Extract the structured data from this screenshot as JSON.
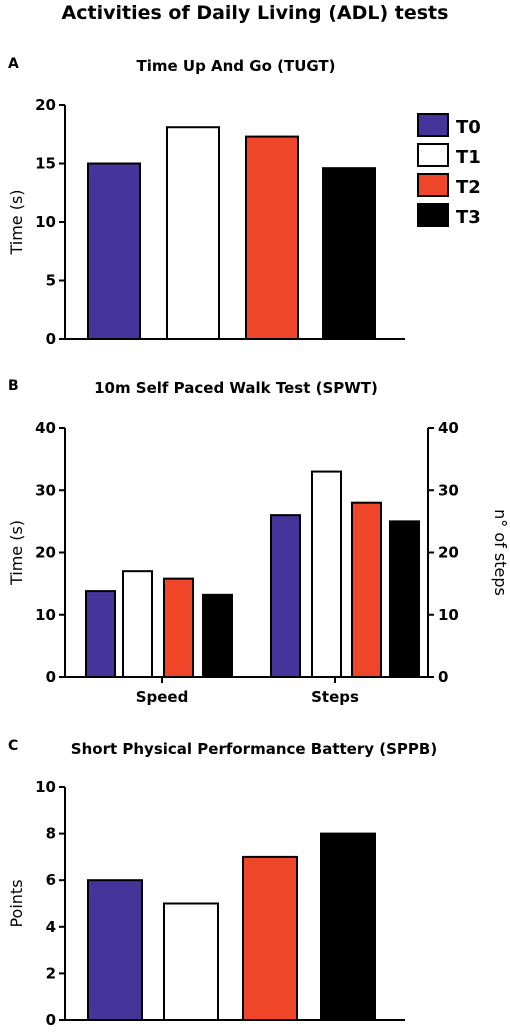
{
  "figure_title": "Activities of Daily Living (ADL) tests",
  "legend": [
    {
      "label": "T0",
      "color": "#45349a"
    },
    {
      "label": "T1",
      "color": "#ffffff"
    },
    {
      "label": "T2",
      "color": "#ef4528"
    },
    {
      "label": "T3",
      "color": "#000000"
    }
  ],
  "chart_data": [
    {
      "panel": "A",
      "type": "bar",
      "title": "Time Up And Go (TUGT)",
      "ylabel": "Time (s)",
      "ylim": [
        0,
        20
      ],
      "yticks": [
        0,
        5,
        10,
        15,
        20
      ],
      "series": [
        {
          "name": "T0",
          "values": [
            15
          ]
        },
        {
          "name": "T1",
          "values": [
            18.1
          ]
        },
        {
          "name": "T2",
          "values": [
            17.3
          ]
        },
        {
          "name": "T3",
          "values": [
            14.6
          ]
        }
      ]
    },
    {
      "panel": "B",
      "type": "bar",
      "title": "10m Self Paced Walk Test (SPWT)",
      "categories": [
        "Speed",
        "Steps"
      ],
      "ylabel": "Time (s)",
      "y2label": "n° of steps",
      "ylim": [
        0,
        40
      ],
      "y2lim": [
        0,
        40
      ],
      "yticks": [
        0,
        10,
        20,
        30,
        40
      ],
      "y2ticks": [
        0,
        10,
        20,
        30,
        40
      ],
      "series": [
        {
          "name": "T0",
          "values": [
            13.8,
            26
          ]
        },
        {
          "name": "T1",
          "values": [
            17,
            33
          ]
        },
        {
          "name": "T2",
          "values": [
            15.8,
            28
          ]
        },
        {
          "name": "T3",
          "values": [
            13.2,
            25
          ]
        }
      ]
    },
    {
      "panel": "C",
      "type": "bar",
      "title": "Short Physical Performance Battery (SPPB)",
      "ylabel": "Points",
      "ylim": [
        0,
        10
      ],
      "yticks": [
        0,
        2,
        4,
        6,
        8,
        10
      ],
      "series": [
        {
          "name": "T0",
          "values": [
            6
          ]
        },
        {
          "name": "T1",
          "values": [
            5
          ]
        },
        {
          "name": "T2",
          "values": [
            7
          ]
        },
        {
          "name": "T3",
          "values": [
            8
          ]
        }
      ]
    }
  ]
}
